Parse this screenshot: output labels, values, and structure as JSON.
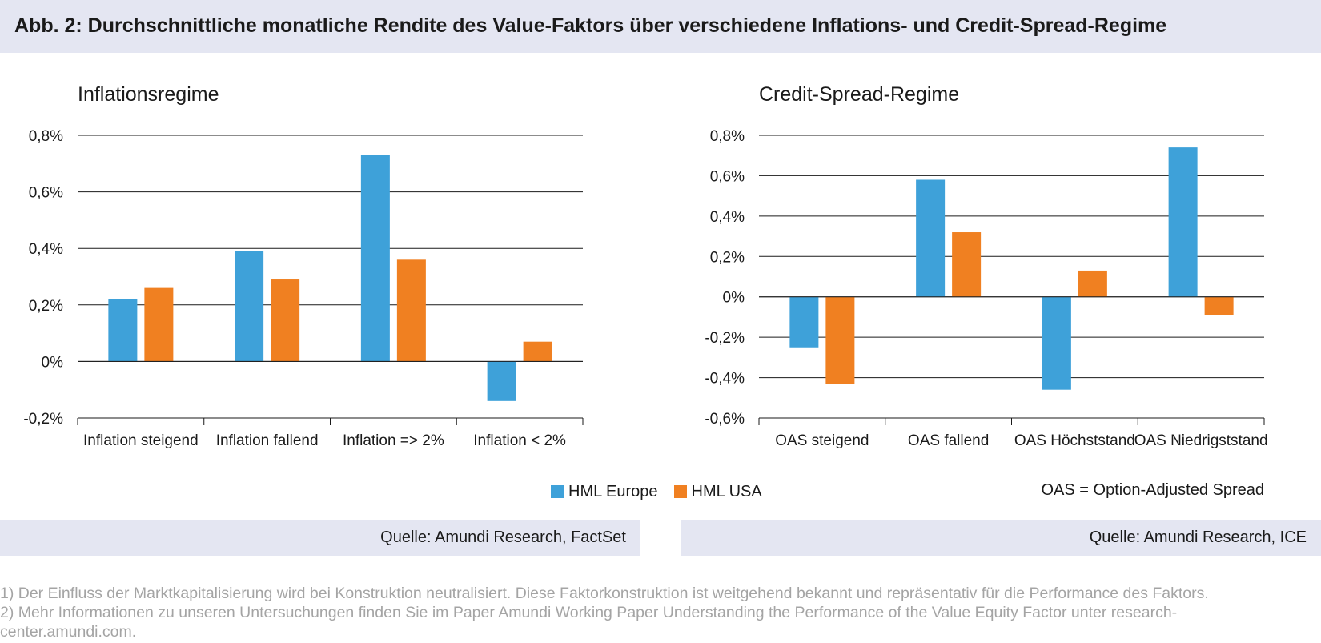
{
  "header": {
    "title": "Abb. 2: Durchschnittliche monatliche Rendite des Value-Faktors über verschiedene Inflations- und Credit-Spread-Regime"
  },
  "colors": {
    "hml_europe": "#3ea1d9",
    "hml_usa": "#f08021",
    "title_band": "#e4e6f2",
    "footnote_text": "#a4a4a4"
  },
  "legend": {
    "items": [
      {
        "label": "HML Europe",
        "color": "#3ea1d9"
      },
      {
        "label": "HML USA",
        "color": "#f08021"
      }
    ],
    "note": "OAS = Option-Adjusted Spread"
  },
  "sources": {
    "left": "Quelle: Amundi Research, FactSet",
    "right": "Quelle: Amundi Research, ICE"
  },
  "footnotes": [
    "1) Der Einfluss der Marktkapitalisierung wird bei Konstruktion neutralisiert. Diese Faktorkonstruktion ist weitgehend bekannt und repräsentativ für die Performance des Faktors.",
    "2) Mehr Informationen zu unseren Untersuchungen finden Sie im Paper Amundi Working Paper Understanding the Performance of the Value Equity Factor unter research-",
    "center.amundi.com."
  ],
  "chart_data": [
    {
      "type": "bar",
      "title": "Inflationsregime",
      "categories": [
        "Inflation steigend",
        "Inflation fallend",
        "Inflation => 2%",
        "Inflation < 2%"
      ],
      "series": [
        {
          "name": "HML Europe",
          "values": [
            0.22,
            0.39,
            0.73,
            -0.14
          ]
        },
        {
          "name": "HML USA",
          "values": [
            0.26,
            0.29,
            0.36,
            0.07
          ]
        }
      ],
      "yticks": [
        "0,8%",
        "0,6%",
        "0,4%",
        "0,2%",
        "0%",
        "-0,2%"
      ],
      "ylim": [
        -0.2,
        0.8
      ],
      "grid": true,
      "legend": "bottom"
    },
    {
      "type": "bar",
      "title": "Credit-Spread-Regime",
      "categories": [
        "OAS steigend",
        "OAS fallend",
        "OAS Höchststand",
        "OAS Niedrigststand"
      ],
      "series": [
        {
          "name": "HML Europe",
          "values": [
            -0.25,
            0.58,
            -0.46,
            0.74
          ]
        },
        {
          "name": "HML USA",
          "values": [
            -0.43,
            0.32,
            0.13,
            -0.09
          ]
        }
      ],
      "yticks": [
        "0,8%",
        "0,6%",
        "0,4%",
        "0,2%",
        "0%",
        "-0,2%",
        "-0,4%",
        "-0,6%"
      ],
      "ylim": [
        -0.6,
        0.8
      ],
      "grid": true,
      "legend": "bottom"
    }
  ]
}
